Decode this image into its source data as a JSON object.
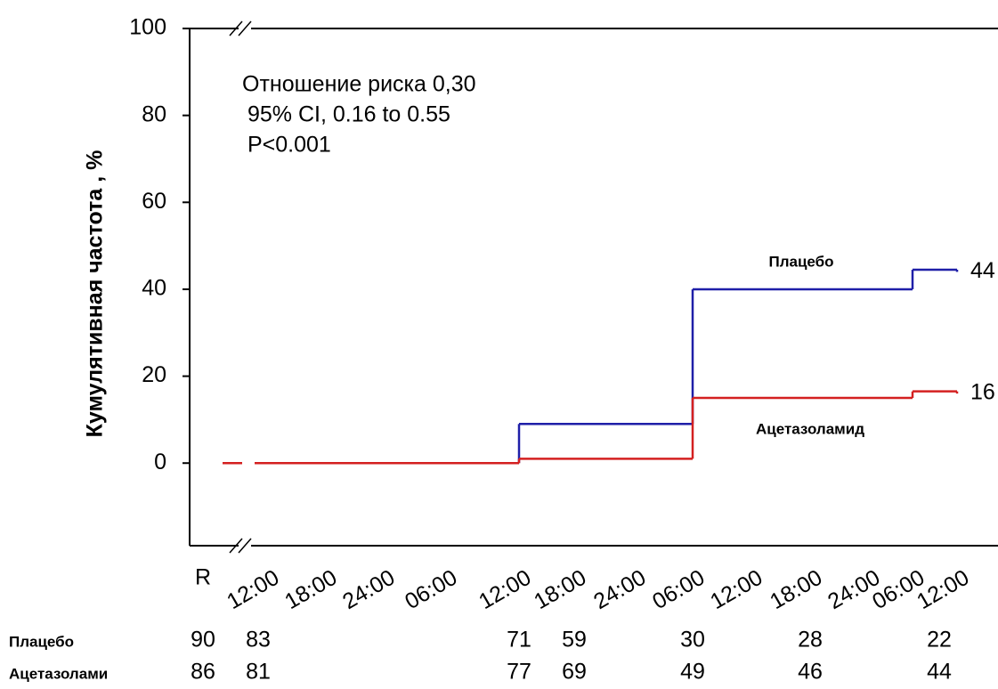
{
  "chart_data": {
    "type": "step",
    "y_label": "Кумулятивная частота , %",
    "annotations": [
      "Отношение риска 0,30",
      "95% CI, 0.16 to 0.55",
      "P<0.001"
    ],
    "categories": [
      "R",
      "12:00",
      "18:00",
      "24:00",
      "06:00",
      "12:00",
      "18:00",
      "24:00",
      "06:00",
      "12:00",
      "18:00",
      "24:00",
      "06:00",
      "12:00"
    ],
    "ylim": [
      -19,
      100
    ],
    "yticks": [
      0,
      20,
      40,
      60,
      80,
      100
    ],
    "series": [
      {
        "name": "Плацебо",
        "color": "#1f1fa8",
        "x": [
          0,
          5,
          8,
          12,
          13
        ],
        "values": [
          0,
          9,
          40,
          44.5,
          44
        ]
      },
      {
        "name": "Ацетазоламид",
        "color": "#d42020",
        "x": [
          0,
          5,
          8,
          12,
          13
        ],
        "values": [
          0,
          1,
          15,
          16.5,
          16
        ]
      }
    ],
    "risk_table": {
      "rows": [
        {
          "label": "Плацебо",
          "values": [
            90,
            83,
            71,
            59,
            30,
            28,
            22
          ]
        },
        {
          "label": "Ацетазолами",
          "values": [
            86,
            81,
            77,
            69,
            49,
            46,
            44
          ]
        }
      ]
    }
  }
}
